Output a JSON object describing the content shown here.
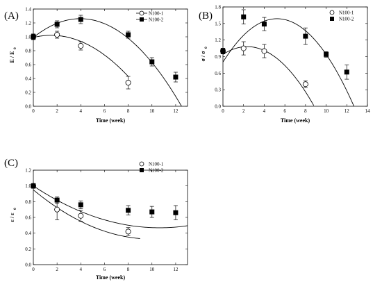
{
  "chart_data": [
    {
      "type": "scatter",
      "panel_label": "(A)",
      "xlabel": "Time (week)",
      "ylabel_main": "E / E",
      "ylabel_sub": "0",
      "xlim": [
        0,
        13
      ],
      "ylim": [
        0.0,
        1.4
      ],
      "xticks": [
        "0",
        "2",
        "4",
        "6",
        "8",
        "10",
        "12"
      ],
      "yticks": [
        "0.0",
        "0.2",
        "0.4",
        "0.6",
        "0.8",
        "1.0",
        "1.2",
        "1.4"
      ],
      "legend_position": "top-right",
      "series": [
        {
          "name": "N100-1",
          "marker": "circle-open",
          "x": [
            0,
            2,
            4,
            8
          ],
          "y": [
            1.0,
            1.03,
            0.87,
            0.34
          ],
          "err": [
            0.04,
            0.05,
            0.06,
            0.09
          ],
          "fit": [
            -0.014,
            0.042,
            0.99
          ],
          "fit_range": [
            0,
            8
          ]
        },
        {
          "name": "N100-2",
          "marker": "square-filled",
          "x": [
            0,
            2,
            4,
            8,
            10,
            12
          ],
          "y": [
            1.0,
            1.18,
            1.25,
            1.03,
            0.64,
            0.42
          ],
          "err": [
            0.04,
            0.05,
            0.06,
            0.05,
            0.06,
            0.07
          ],
          "fit": [
            -0.0173,
            0.137,
            0.99
          ],
          "fit_range": [
            0,
            12.9
          ]
        }
      ]
    },
    {
      "type": "scatter",
      "panel_label": "(B)",
      "xlabel": "Time (week)",
      "ylabel_main": "σ / σ",
      "ylabel_sub": "0",
      "xlim": [
        0,
        14
      ],
      "ylim": [
        0.0,
        1.8
      ],
      "xticks": [
        "0",
        "2",
        "4",
        "6",
        "8",
        "10",
        "12",
        "14"
      ],
      "yticks": [
        "0.0",
        "0.3",
        "0.6",
        "0.9",
        "1.2",
        "1.5",
        "1.8"
      ],
      "legend_position": "top-right",
      "series": [
        {
          "name": "N100-1",
          "marker": "circle-open",
          "x": [
            0,
            2,
            4,
            8
          ],
          "y": [
            1.0,
            1.05,
            1.0,
            0.4
          ],
          "err": [
            0.05,
            0.12,
            0.12,
            0.06
          ],
          "fit": [
            -0.0256,
            0.12,
            0.94
          ],
          "fit_range": [
            0,
            8.8
          ]
        },
        {
          "name": "N100-2",
          "marker": "square-filled",
          "x": [
            0,
            2,
            4,
            8,
            10,
            12
          ],
          "y": [
            1.0,
            1.62,
            1.49,
            1.27,
            0.94,
            0.62
          ],
          "err": [
            0.05,
            0.13,
            0.12,
            0.15,
            0.05,
            0.13
          ],
          "fit": [
            -0.0286,
            0.3,
            0.8
          ],
          "fit_range": [
            0,
            12.9
          ]
        }
      ]
    },
    {
      "type": "scatter",
      "panel_label": "(C)",
      "xlabel": "Time (week)",
      "ylabel_main": "ε / ε",
      "ylabel_sub": "0",
      "xlim": [
        0,
        13
      ],
      "ylim": [
        0.0,
        1.2
      ],
      "xticks": [
        "0",
        "2",
        "4",
        "6",
        "8",
        "10",
        "12"
      ],
      "yticks": [
        "0.0",
        "0.2",
        "0.4",
        "0.6",
        "0.8",
        "1.0",
        "1.2"
      ],
      "legend_position": "top-right",
      "series": [
        {
          "name": "N100-1",
          "marker": "circle-open",
          "x": [
            0,
            2,
            4,
            8
          ],
          "y": [
            1.0,
            0.7,
            0.62,
            0.42
          ],
          "err": [
            0.03,
            0.13,
            0.07,
            0.05
          ],
          "fit": [
            0.00625,
            -0.125,
            0.95
          ],
          "fit_range": [
            0,
            9
          ]
        },
        {
          "name": "N100-2",
          "marker": "square-filled",
          "x": [
            0,
            2,
            4,
            8,
            10,
            12
          ],
          "y": [
            1.0,
            0.82,
            0.76,
            0.69,
            0.67,
            0.66
          ],
          "err": [
            0.03,
            0.04,
            0.05,
            0.06,
            0.07,
            0.09
          ],
          "fit": [
            0.0047,
            -0.1,
            1.0
          ],
          "fit_range": [
            0,
            13
          ]
        }
      ]
    }
  ]
}
